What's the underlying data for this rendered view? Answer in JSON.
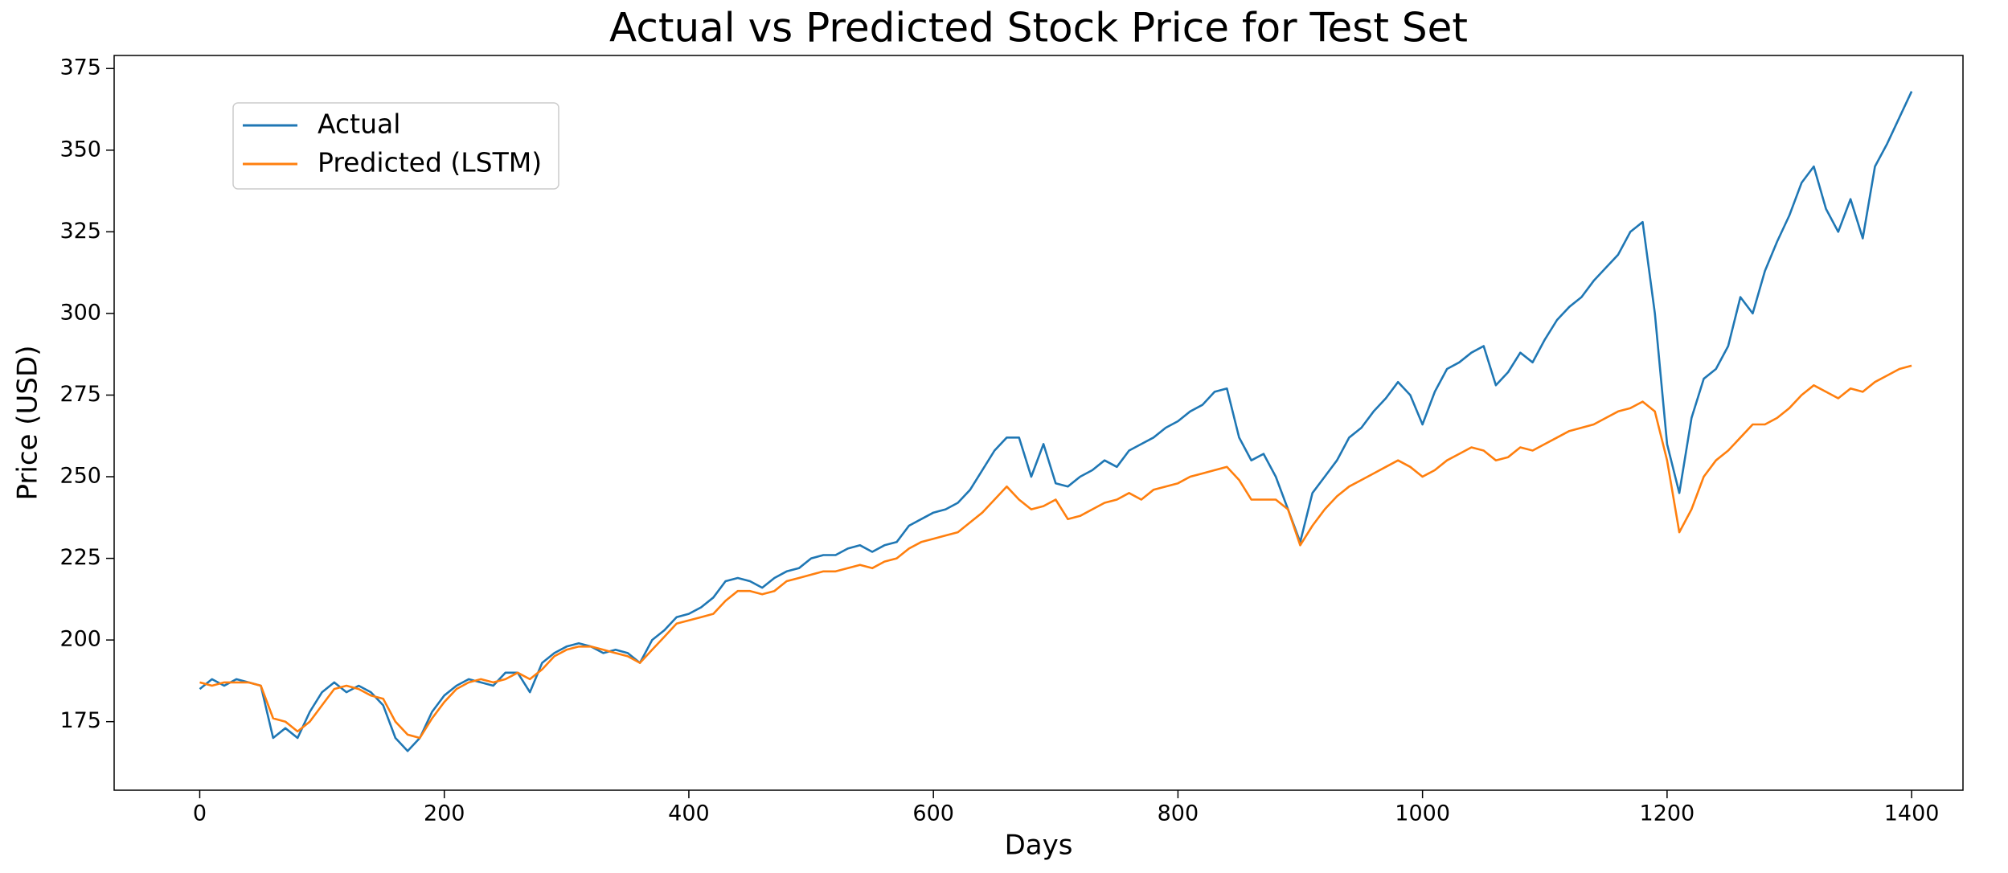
{
  "chart_data": {
    "type": "line",
    "title": "Actual vs Predicted Stock Price for Test Set",
    "x_label": "Days",
    "y_label": "Price (USD)",
    "x": [
      0,
      10,
      20,
      30,
      40,
      50,
      60,
      70,
      80,
      90,
      100,
      110,
      120,
      130,
      140,
      150,
      160,
      170,
      180,
      190,
      200,
      210,
      220,
      230,
      240,
      250,
      260,
      270,
      280,
      290,
      300,
      310,
      320,
      330,
      340,
      350,
      360,
      370,
      380,
      390,
      400,
      410,
      420,
      430,
      440,
      450,
      460,
      470,
      480,
      490,
      500,
      510,
      520,
      530,
      540,
      550,
      560,
      570,
      580,
      590,
      600,
      610,
      620,
      630,
      640,
      650,
      660,
      670,
      680,
      690,
      700,
      710,
      720,
      730,
      740,
      750,
      760,
      770,
      780,
      790,
      800,
      810,
      820,
      830,
      840,
      850,
      860,
      870,
      880,
      890,
      900,
      910,
      920,
      930,
      940,
      950,
      960,
      970,
      980,
      990,
      1000,
      1010,
      1020,
      1030,
      1040,
      1050,
      1060,
      1070,
      1080,
      1090,
      1100,
      1110,
      1120,
      1130,
      1140,
      1150,
      1160,
      1170,
      1180,
      1190,
      1200,
      1210,
      1220,
      1230,
      1240,
      1250,
      1260,
      1270,
      1280,
      1290,
      1300,
      1310,
      1320,
      1330,
      1340,
      1350,
      1360,
      1370,
      1380,
      1390,
      1400
    ],
    "series": [
      {
        "name": "Actual",
        "color": "#1f77b4",
        "values": [
          185,
          188,
          186,
          188,
          187,
          186,
          170,
          173,
          170,
          178,
          184,
          187,
          184,
          186,
          184,
          180,
          170,
          166,
          170,
          178,
          183,
          186,
          188,
          187,
          186,
          190,
          190,
          184,
          193,
          196,
          198,
          199,
          198,
          196,
          197,
          196,
          193,
          200,
          203,
          207,
          208,
          210,
          213,
          218,
          219,
          218,
          216,
          219,
          221,
          222,
          225,
          226,
          226,
          228,
          229,
          227,
          229,
          230,
          235,
          237,
          239,
          240,
          242,
          246,
          252,
          258,
          262,
          262,
          250,
          260,
          248,
          247,
          250,
          252,
          255,
          253,
          258,
          260,
          262,
          265,
          267,
          270,
          272,
          276,
          277,
          262,
          255,
          257,
          250,
          240,
          230,
          245,
          250,
          255,
          262,
          265,
          270,
          274,
          279,
          275,
          266,
          276,
          283,
          285,
          288,
          290,
          278,
          282,
          288,
          285,
          292,
          298,
          302,
          305,
          310,
          314,
          318,
          325,
          328,
          300,
          260,
          245,
          268,
          280,
          283,
          290,
          305,
          300,
          313,
          322,
          330,
          340,
          345,
          332,
          325,
          335,
          323,
          345,
          352,
          360,
          368
        ]
      },
      {
        "name": "Predicted (LSTM)",
        "color": "#ff7f0e",
        "values": [
          187,
          186,
          187,
          187,
          187,
          186,
          176,
          175,
          172,
          175,
          180,
          185,
          186,
          185,
          183,
          182,
          175,
          171,
          170,
          176,
          181,
          185,
          187,
          188,
          187,
          188,
          190,
          188,
          191,
          195,
          197,
          198,
          198,
          197,
          196,
          195,
          193,
          197,
          201,
          205,
          206,
          207,
          208,
          212,
          215,
          215,
          214,
          215,
          218,
          219,
          220,
          221,
          221,
          222,
          223,
          222,
          224,
          225,
          228,
          230,
          231,
          232,
          233,
          236,
          239,
          243,
          247,
          243,
          240,
          241,
          243,
          237,
          238,
          240,
          242,
          243,
          245,
          243,
          246,
          247,
          248,
          250,
          251,
          252,
          253,
          249,
          243,
          243,
          243,
          240,
          229,
          235,
          240,
          244,
          247,
          249,
          251,
          253,
          255,
          253,
          250,
          252,
          255,
          257,
          259,
          258,
          255,
          256,
          259,
          258,
          260,
          262,
          264,
          265,
          266,
          268,
          270,
          271,
          273,
          270,
          255,
          233,
          240,
          250,
          255,
          258,
          262,
          266,
          266,
          268,
          271,
          275,
          278,
          276,
          274,
          277,
          276,
          279,
          281,
          283,
          284
        ]
      }
    ],
    "xlim": [
      -70,
      1442
    ],
    "xticks": [
      0,
      200,
      400,
      600,
      800,
      1000,
      1200,
      1400
    ],
    "ylim": [
      154,
      379
    ],
    "yticks": [
      175,
      200,
      225,
      250,
      275,
      300,
      325,
      350,
      375
    ],
    "grid": false,
    "legend_location": "upper left"
  }
}
